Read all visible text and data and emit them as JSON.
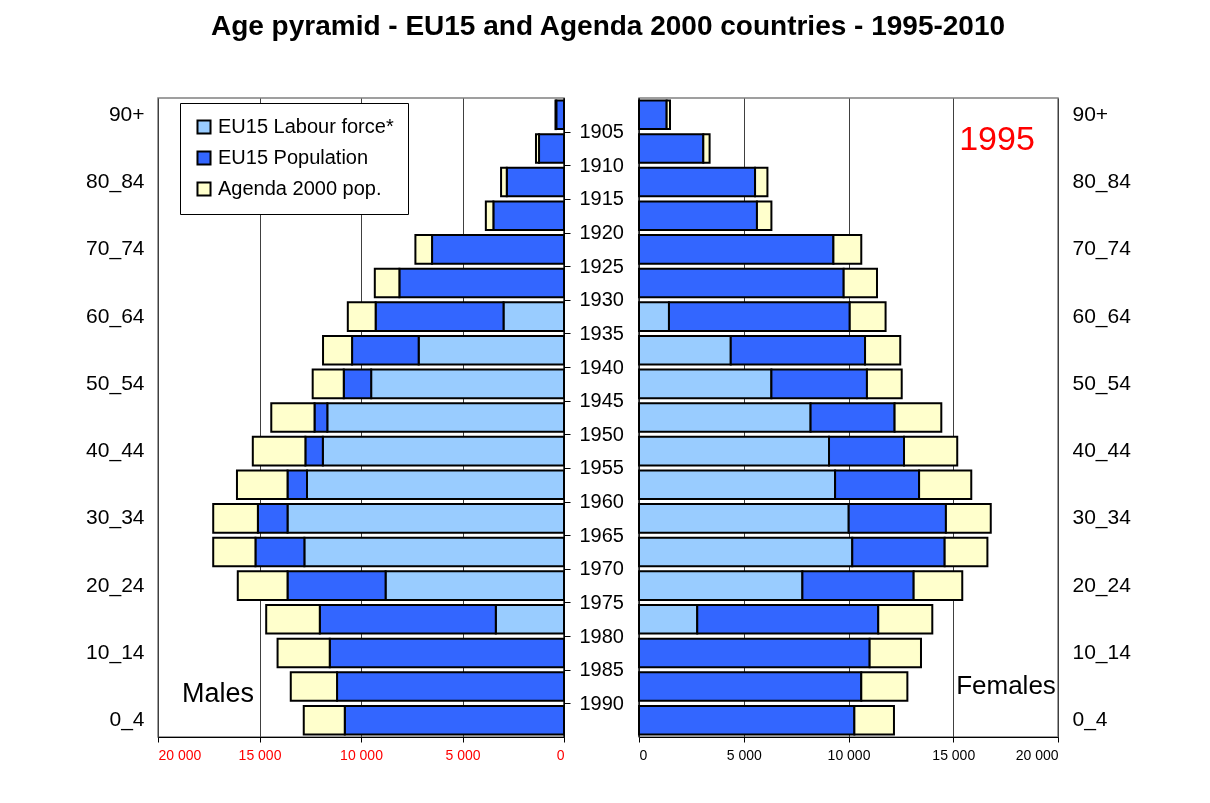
{
  "chart_data": [
    {
      "type": "bar",
      "title": "Age pyramid - EU15 and Agenda 2000 countries - 1995-2010",
      "orientation": "horizontal",
      "stacked": true,
      "categories": [
        "90+",
        null,
        "80_84",
        null,
        "70_74",
        null,
        "60_64",
        null,
        "50_54",
        null,
        "40_44",
        null,
        "30_34",
        null,
        "20_24",
        null,
        "10_14",
        null,
        "0_4"
      ],
      "xlim": [
        20000,
        0
      ],
      "xticks": [
        {
          "value": 20000,
          "label": "20 000"
        },
        {
          "value": 15000,
          "label": "15 000"
        },
        {
          "value": 10000,
          "label": "10 000"
        },
        {
          "value": 5000,
          "label": "5 000"
        },
        0
      ],
      "y2lim": [
        1995,
        1900
      ],
      "y2ticks": [
        1905,
        1910,
        1915,
        1920,
        1925,
        1930,
        1935,
        1940,
        1945,
        1950,
        1955,
        1960,
        1965,
        1970,
        1975,
        1980,
        1985,
        1990
      ],
      "grid": "x",
      "legend": "top left",
      "series": [
        {
          "name": "EU15 Labour force*",
          "color": "#99ccff",
          "values": [
            null,
            null,
            null,
            null,
            null,
            null,
            2980,
            7160,
            9500,
            11660,
            11880,
            12660,
            13620,
            12790,
            8790,
            3360,
            null,
            null,
            null
          ]
        },
        {
          "name": "EU15 Population",
          "color": "#3366ff",
          "values": [
            380,
            1230,
            2820,
            3480,
            6500,
            8110,
            6300,
            3280,
            1350,
            630,
            860,
            960,
            1460,
            2410,
            4830,
            8670,
            11540,
            11180,
            10800
          ]
        },
        {
          "name": "Agenda 2000 pop.",
          "color": "#ffffcc",
          "values": [
            40,
            150,
            280,
            370,
            820,
            1210,
            1370,
            1430,
            1530,
            2130,
            2590,
            2490,
            2200,
            2080,
            2450,
            2640,
            2570,
            2280,
            2020
          ]
        }
      ],
      "annotations": [
        "Males"
      ]
    },
    {
      "type": "bar",
      "orientation": "horizontal",
      "stacked": true,
      "categories": [
        "90+",
        null,
        "80_84",
        null,
        "70_74",
        null,
        "60_64",
        null,
        "50_54",
        null,
        "40_44",
        null,
        "30_34",
        null,
        "20_24",
        null,
        "10_14",
        null,
        "0_4"
      ],
      "xlim": [
        0,
        20000
      ],
      "xticks": [
        0,
        {
          "value": 5000,
          "label": "5 000"
        },
        {
          "value": 10000,
          "label": "10 000"
        },
        {
          "value": 15000,
          "label": "15 000"
        },
        {
          "value": 20000,
          "label": "20 000"
        }
      ],
      "grid": "x",
      "series": [
        {
          "color": "#99ccff",
          "values": [
            null,
            null,
            null,
            null,
            null,
            null,
            1430,
            4380,
            6320,
            8190,
            9070,
            9360,
            10010,
            10180,
            7800,
            2780,
            null,
            null,
            null
          ]
        },
        {
          "color": "#3366ff",
          "values": [
            1320,
            3070,
            5540,
            5630,
            9280,
            9770,
            8630,
            6410,
            4560,
            4010,
            3580,
            4010,
            4640,
            4410,
            5310,
            8640,
            11010,
            10610,
            10280
          ]
        },
        {
          "color": "#ffffcc",
          "values": [
            160,
            300,
            590,
            690,
            1330,
            1590,
            1710,
            1680,
            1660,
            2230,
            2540,
            2490,
            2140,
            2040,
            2320,
            2580,
            2450,
            2200,
            1890
          ]
        }
      ],
      "annotations": [
        "1995",
        "Females"
      ]
    }
  ]
}
